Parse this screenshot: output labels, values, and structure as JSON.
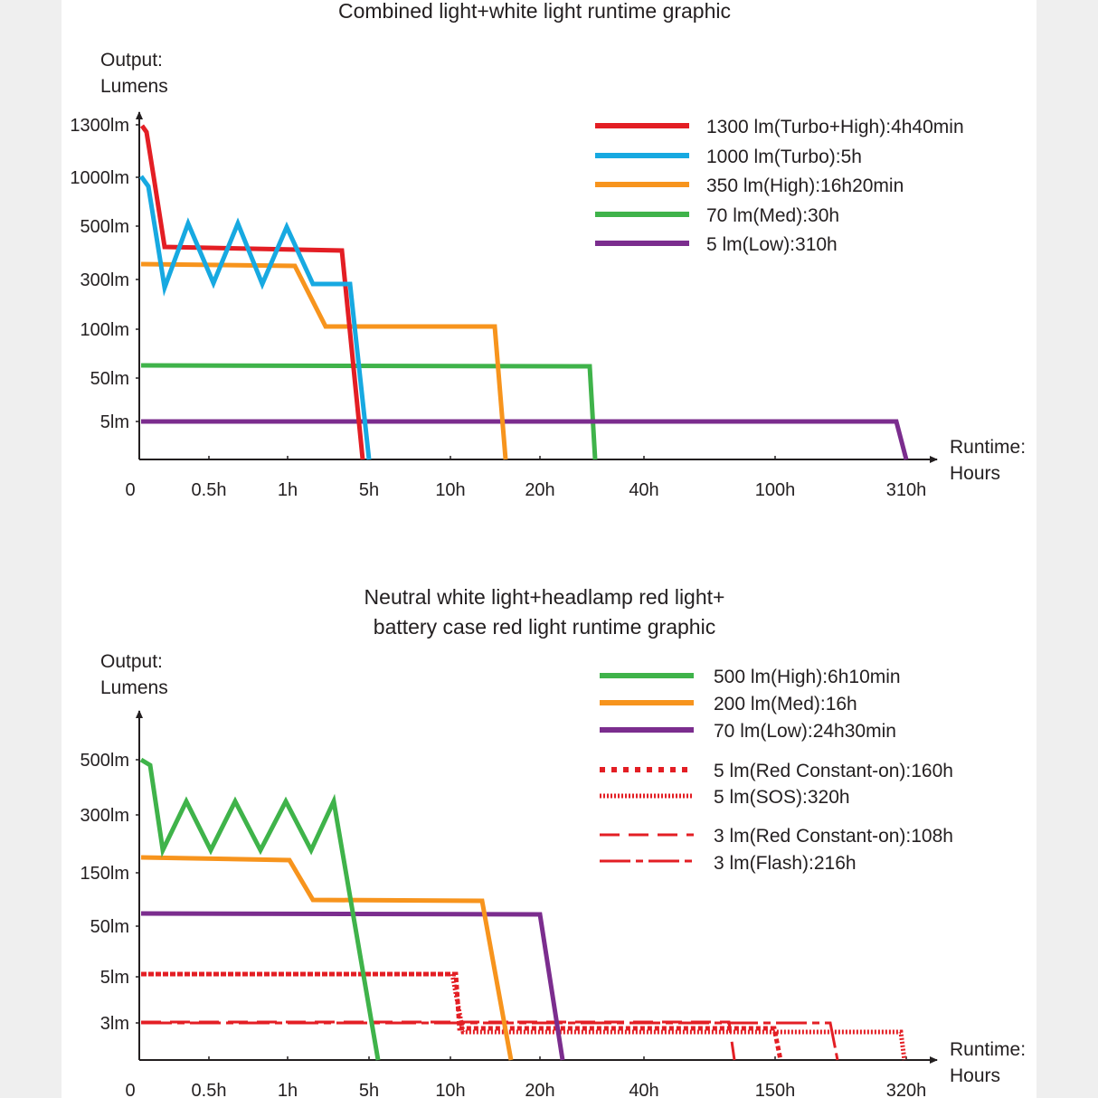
{
  "colors": {
    "red": "#e31e24",
    "blue": "#17a9e1",
    "orange": "#f7941d",
    "green": "#3fb34a",
    "purple": "#7b2d8e",
    "axis": "#231f20"
  },
  "chart_data": [
    {
      "type": "line",
      "title": "Combined light+white light runtime graphic",
      "ylabel": [
        "Output:",
        "Lumens"
      ],
      "xlabel": [
        "Runtime:",
        "Hours"
      ],
      "x_scale": "categorical-nonlinear",
      "y_scale": "categorical-nonlinear",
      "x_ticks": [
        "0",
        "0.5h",
        "1h",
        "5h",
        "10h",
        "20h",
        "40h",
        "100h",
        "310h"
      ],
      "y_ticks": [
        "1300lm",
        "1000lm",
        "500lm",
        "300lm",
        "100lm",
        "50lm",
        "5lm"
      ],
      "legend": [
        "1300 lm(Turbo+High):4h40min",
        "1000 lm(Turbo):5h",
        "350 lm(High):16h20min",
        "70 lm(Med):30h",
        "5 lm(Low):310h"
      ],
      "series": [
        {
          "name": "1300 lm(Turbo+High):4h40min",
          "color": "red",
          "style": "solid",
          "x": [
            "0",
            "4h40min",
            "4h40min"
          ],
          "y": [
            1300,
            400,
            0
          ]
        },
        {
          "name": "1000 lm(Turbo):5h",
          "color": "blue",
          "style": "solid",
          "x": [
            "0",
            "5h",
            "5h"
          ],
          "y": [
            1000,
            300,
            0
          ]
        },
        {
          "name": "350 lm(High):16h20min",
          "color": "orange",
          "style": "solid",
          "x": [
            "0",
            "16h20min",
            "16h20min"
          ],
          "y": [
            350,
            100,
            0
          ]
        },
        {
          "name": "70 lm(Med):30h",
          "color": "green",
          "style": "solid",
          "x": [
            "0",
            "30h",
            "30h"
          ],
          "y": [
            70,
            70,
            0
          ]
        },
        {
          "name": "5 lm(Low):310h",
          "color": "purple",
          "style": "solid",
          "x": [
            "0",
            "310h",
            "310h"
          ],
          "y": [
            5,
            5,
            0
          ]
        }
      ]
    },
    {
      "type": "line",
      "title": [
        "Neutral white light+headlamp red light+",
        "battery case red light runtime graphic"
      ],
      "ylabel": [
        "Output:",
        "Lumens"
      ],
      "xlabel": [
        "Runtime:",
        "Hours"
      ],
      "x_scale": "categorical-nonlinear",
      "y_scale": "categorical-nonlinear",
      "x_ticks": [
        "0",
        "0.5h",
        "1h",
        "5h",
        "10h",
        "20h",
        "40h",
        "150h",
        "320h"
      ],
      "y_ticks": [
        "500lm",
        "300lm",
        "150lm",
        "50lm",
        "5lm",
        "3lm"
      ],
      "legend": [
        "500 lm(High):6h10min",
        "200 lm(Med):16h",
        "70 lm(Low):24h30min",
        "5 lm(Red Constant-on):160h",
        "5 lm(SOS):320h",
        "3 lm(Red Constant-on):108h",
        "3 lm(Flash):216h"
      ],
      "series": [
        {
          "name": "500 lm(High):6h10min",
          "color": "green",
          "style": "solid",
          "x": [
            "0",
            "6h10min",
            "6h10min"
          ],
          "y": [
            500,
            300,
            0
          ]
        },
        {
          "name": "200 lm(Med):16h",
          "color": "orange",
          "style": "solid",
          "x": [
            "0",
            "16h",
            "16h"
          ],
          "y": [
            200,
            150,
            0
          ]
        },
        {
          "name": "70 lm(Low):24h30min",
          "color": "purple",
          "style": "solid",
          "x": [
            "0",
            "24h30min",
            "24h30min"
          ],
          "y": [
            70,
            70,
            0
          ]
        },
        {
          "name": "5 lm(Red Constant-on):160h",
          "color": "red",
          "style": "square-dotted",
          "x": [
            "0",
            "160h",
            "160h"
          ],
          "y": [
            5,
            5,
            0
          ]
        },
        {
          "name": "5 lm(SOS):320h",
          "color": "red",
          "style": "fine-dotted",
          "x": [
            "0",
            "320h",
            "320h"
          ],
          "y": [
            5,
            5,
            0
          ]
        },
        {
          "name": "3 lm(Red Constant-on):108h",
          "color": "red",
          "style": "dashed",
          "x": [
            "0",
            "108h",
            "108h"
          ],
          "y": [
            3,
            3,
            0
          ]
        },
        {
          "name": "3 lm(Flash):216h",
          "color": "red",
          "style": "dash-dot",
          "x": [
            "0",
            "216h",
            "216h"
          ],
          "y": [
            3,
            3,
            0
          ]
        }
      ]
    }
  ]
}
